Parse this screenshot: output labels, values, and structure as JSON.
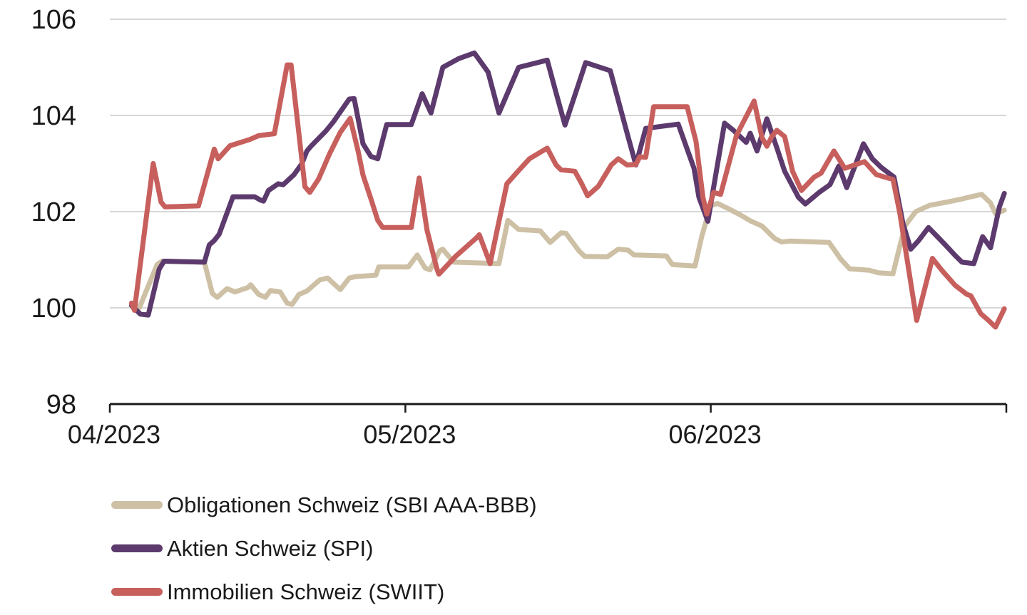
{
  "chart_data": {
    "type": "line",
    "title": "",
    "grid": "horizontal",
    "legend_position": "bottom-left",
    "x_axis": {
      "unit": "days since 2023-04-01",
      "range": [
        0,
        91
      ],
      "ticks": [
        {
          "pos": 0,
          "label": "04/2023"
        },
        {
          "pos": 30,
          "label": "05/2023"
        },
        {
          "pos": 61,
          "label": "06/2023"
        }
      ],
      "end_tick_pos": 91
    },
    "y_axis": {
      "range": [
        98,
        106
      ],
      "ticks": [
        98,
        100,
        102,
        104,
        106
      ]
    },
    "series": [
      {
        "name": "Obligationen Schweiz (SBI AAA-BBB)",
        "color": "#cdc0a5",
        "points": [
          [
            2.2,
            100.05
          ],
          [
            3.0,
            100.0
          ],
          [
            4.8,
            100.9
          ],
          [
            5.3,
            100.97
          ],
          [
            9.6,
            100.95
          ],
          [
            10.4,
            100.3
          ],
          [
            10.9,
            100.22
          ],
          [
            11.9,
            100.4
          ],
          [
            12.7,
            100.33
          ],
          [
            14.0,
            100.42
          ],
          [
            14.3,
            100.48
          ],
          [
            15.1,
            100.28
          ],
          [
            15.8,
            100.22
          ],
          [
            16.3,
            100.36
          ],
          [
            17.3,
            100.33
          ],
          [
            18.0,
            100.1
          ],
          [
            18.5,
            100.07
          ],
          [
            19.2,
            100.28
          ],
          [
            20.0,
            100.35
          ],
          [
            21.3,
            100.58
          ],
          [
            22.1,
            100.62
          ],
          [
            23.0,
            100.45
          ],
          [
            23.4,
            100.38
          ],
          [
            24.3,
            100.62
          ],
          [
            25.0,
            100.65
          ],
          [
            27.0,
            100.68
          ],
          [
            27.3,
            100.85
          ],
          [
            30.3,
            100.85
          ],
          [
            31.2,
            101.1
          ],
          [
            32.0,
            100.83
          ],
          [
            32.5,
            100.79
          ],
          [
            33.5,
            101.19
          ],
          [
            33.8,
            101.22
          ],
          [
            34.9,
            100.95
          ],
          [
            39.5,
            100.92
          ],
          [
            40.4,
            101.82
          ],
          [
            41.1,
            101.7
          ],
          [
            41.5,
            101.63
          ],
          [
            43.7,
            101.6
          ],
          [
            44.7,
            101.36
          ],
          [
            45.8,
            101.56
          ],
          [
            46.3,
            101.55
          ],
          [
            47.6,
            101.19
          ],
          [
            48.2,
            101.07
          ],
          [
            50.5,
            101.06
          ],
          [
            51.6,
            101.22
          ],
          [
            52.6,
            101.2
          ],
          [
            53.2,
            101.1
          ],
          [
            56.5,
            101.08
          ],
          [
            57.1,
            100.9
          ],
          [
            59.4,
            100.87
          ],
          [
            60.1,
            101.5
          ],
          [
            61.0,
            102.13
          ],
          [
            61.7,
            102.17
          ],
          [
            62.8,
            102.06
          ],
          [
            64.1,
            101.92
          ],
          [
            65.0,
            101.81
          ],
          [
            66.2,
            101.7
          ],
          [
            67.5,
            101.44
          ],
          [
            68.2,
            101.37
          ],
          [
            69.1,
            101.39
          ],
          [
            73.0,
            101.36
          ],
          [
            73.7,
            101.16
          ],
          [
            74.2,
            101.01
          ],
          [
            75.1,
            100.81
          ],
          [
            77.1,
            100.78
          ],
          [
            78.0,
            100.73
          ],
          [
            79.5,
            100.71
          ],
          [
            80.7,
            101.7
          ],
          [
            81.8,
            102.0
          ],
          [
            83.2,
            102.13
          ],
          [
            85.0,
            102.2
          ],
          [
            86.2,
            102.25
          ],
          [
            87.2,
            102.3
          ],
          [
            88.5,
            102.36
          ],
          [
            89.4,
            102.18
          ],
          [
            89.9,
            101.96
          ],
          [
            90.8,
            102.03
          ]
        ]
      },
      {
        "name": "Aktien Schweiz (SPI)",
        "color": "#5c3a6d",
        "points": [
          [
            2.2,
            100.05
          ],
          [
            3.1,
            99.87
          ],
          [
            3.9,
            99.85
          ],
          [
            5.0,
            100.8
          ],
          [
            5.5,
            100.97
          ],
          [
            9.6,
            100.95
          ],
          [
            10.1,
            101.31
          ],
          [
            10.6,
            101.4
          ],
          [
            11.1,
            101.53
          ],
          [
            12.5,
            102.31
          ],
          [
            14.7,
            102.31
          ],
          [
            15.3,
            102.24
          ],
          [
            15.6,
            102.22
          ],
          [
            16.1,
            102.44
          ],
          [
            17.1,
            102.58
          ],
          [
            17.6,
            102.56
          ],
          [
            18.7,
            102.77
          ],
          [
            19.5,
            103.0
          ],
          [
            20.0,
            103.26
          ],
          [
            20.5,
            103.38
          ],
          [
            21.9,
            103.67
          ],
          [
            22.7,
            103.87
          ],
          [
            24.3,
            104.34
          ],
          [
            24.8,
            104.35
          ],
          [
            25.7,
            103.41
          ],
          [
            26.5,
            103.15
          ],
          [
            27.2,
            103.1
          ],
          [
            28.1,
            103.81
          ],
          [
            30.6,
            103.81
          ],
          [
            31.7,
            104.45
          ],
          [
            32.6,
            104.05
          ],
          [
            33.8,
            105.0
          ],
          [
            35.4,
            105.18
          ],
          [
            37.0,
            105.3
          ],
          [
            38.4,
            104.9
          ],
          [
            39.5,
            104.05
          ],
          [
            41.5,
            105.0
          ],
          [
            44.4,
            105.15
          ],
          [
            45.3,
            104.47
          ],
          [
            46.2,
            103.8
          ],
          [
            48.3,
            105.1
          ],
          [
            50.8,
            104.93
          ],
          [
            52.6,
            103.56
          ],
          [
            53.4,
            102.97
          ],
          [
            54.4,
            103.73
          ],
          [
            57.7,
            103.82
          ],
          [
            59.3,
            102.9
          ],
          [
            59.8,
            102.3
          ],
          [
            60.7,
            101.8
          ],
          [
            62.4,
            103.84
          ],
          [
            63.3,
            103.69
          ],
          [
            64.6,
            103.44
          ],
          [
            65.0,
            103.63
          ],
          [
            65.7,
            103.26
          ],
          [
            66.7,
            103.93
          ],
          [
            67.7,
            103.33
          ],
          [
            68.5,
            102.84
          ],
          [
            69.9,
            102.3
          ],
          [
            70.6,
            102.16
          ],
          [
            72.0,
            102.4
          ],
          [
            73.1,
            102.56
          ],
          [
            74.0,
            102.95
          ],
          [
            74.8,
            102.5
          ],
          [
            76.5,
            103.41
          ],
          [
            77.4,
            103.1
          ],
          [
            78.3,
            102.92
          ],
          [
            79.6,
            102.72
          ],
          [
            80.5,
            101.76
          ],
          [
            81.3,
            101.22
          ],
          [
            82.1,
            101.4
          ],
          [
            83.1,
            101.67
          ],
          [
            84.1,
            101.46
          ],
          [
            84.8,
            101.31
          ],
          [
            85.8,
            101.09
          ],
          [
            86.5,
            100.95
          ],
          [
            87.7,
            100.92
          ],
          [
            88.6,
            101.48
          ],
          [
            89.4,
            101.25
          ],
          [
            90.3,
            102.1
          ],
          [
            90.8,
            102.38
          ]
        ]
      },
      {
        "name": "Immobilien Schweiz (SWIIT)",
        "color": "#c75f5d",
        "points": [
          [
            2.2,
            100.1
          ],
          [
            2.5,
            99.95
          ],
          [
            4.4,
            103.0
          ],
          [
            5.2,
            102.2
          ],
          [
            5.6,
            102.1
          ],
          [
            9.0,
            102.12
          ],
          [
            10.6,
            103.3
          ],
          [
            11.0,
            103.1
          ],
          [
            12.2,
            103.37
          ],
          [
            14.2,
            103.5
          ],
          [
            15.1,
            103.58
          ],
          [
            16.7,
            103.62
          ],
          [
            18.0,
            105.05
          ],
          [
            18.4,
            105.05
          ],
          [
            19.8,
            102.52
          ],
          [
            20.3,
            102.4
          ],
          [
            21.2,
            102.68
          ],
          [
            22.3,
            103.2
          ],
          [
            23.4,
            103.65
          ],
          [
            24.4,
            103.94
          ],
          [
            25.2,
            103.26
          ],
          [
            25.7,
            102.76
          ],
          [
            26.5,
            102.27
          ],
          [
            27.2,
            101.82
          ],
          [
            27.7,
            101.67
          ],
          [
            30.6,
            101.67
          ],
          [
            31.4,
            102.7
          ],
          [
            32.2,
            101.61
          ],
          [
            33.2,
            100.81
          ],
          [
            33.4,
            100.7
          ],
          [
            35.1,
            101.07
          ],
          [
            37.3,
            101.47
          ],
          [
            37.5,
            101.52
          ],
          [
            38.6,
            100.92
          ],
          [
            40.3,
            102.58
          ],
          [
            41.3,
            102.81
          ],
          [
            42.6,
            103.1
          ],
          [
            44.4,
            103.32
          ],
          [
            45.3,
            102.97
          ],
          [
            45.8,
            102.87
          ],
          [
            47.2,
            102.84
          ],
          [
            47.9,
            102.58
          ],
          [
            48.5,
            102.33
          ],
          [
            49.6,
            102.53
          ],
          [
            50.9,
            102.97
          ],
          [
            51.6,
            103.1
          ],
          [
            52.5,
            102.97
          ],
          [
            53.4,
            102.98
          ],
          [
            53.8,
            103.14
          ],
          [
            54.4,
            103.13
          ],
          [
            55.2,
            104.18
          ],
          [
            58.6,
            104.18
          ],
          [
            59.5,
            103.46
          ],
          [
            60.2,
            102.3
          ],
          [
            60.6,
            101.95
          ],
          [
            61.3,
            102.4
          ],
          [
            62.0,
            102.36
          ],
          [
            63.6,
            103.58
          ],
          [
            65.4,
            104.3
          ],
          [
            66.2,
            103.54
          ],
          [
            66.7,
            103.36
          ],
          [
            67.2,
            103.56
          ],
          [
            67.7,
            103.69
          ],
          [
            68.5,
            103.56
          ],
          [
            69.3,
            102.84
          ],
          [
            70.2,
            102.44
          ],
          [
            71.5,
            102.72
          ],
          [
            72.2,
            102.8
          ],
          [
            73.5,
            103.26
          ],
          [
            74.6,
            102.9
          ],
          [
            76.6,
            103.04
          ],
          [
            77.8,
            102.77
          ],
          [
            79.5,
            102.67
          ],
          [
            80.2,
            101.96
          ],
          [
            81.9,
            99.74
          ],
          [
            83.5,
            101.03
          ],
          [
            84.5,
            100.77
          ],
          [
            85.8,
            100.47
          ],
          [
            87.0,
            100.28
          ],
          [
            87.4,
            100.25
          ],
          [
            88.4,
            99.88
          ],
          [
            89.2,
            99.74
          ],
          [
            89.9,
            99.6
          ],
          [
            90.8,
            99.98
          ]
        ]
      }
    ]
  }
}
